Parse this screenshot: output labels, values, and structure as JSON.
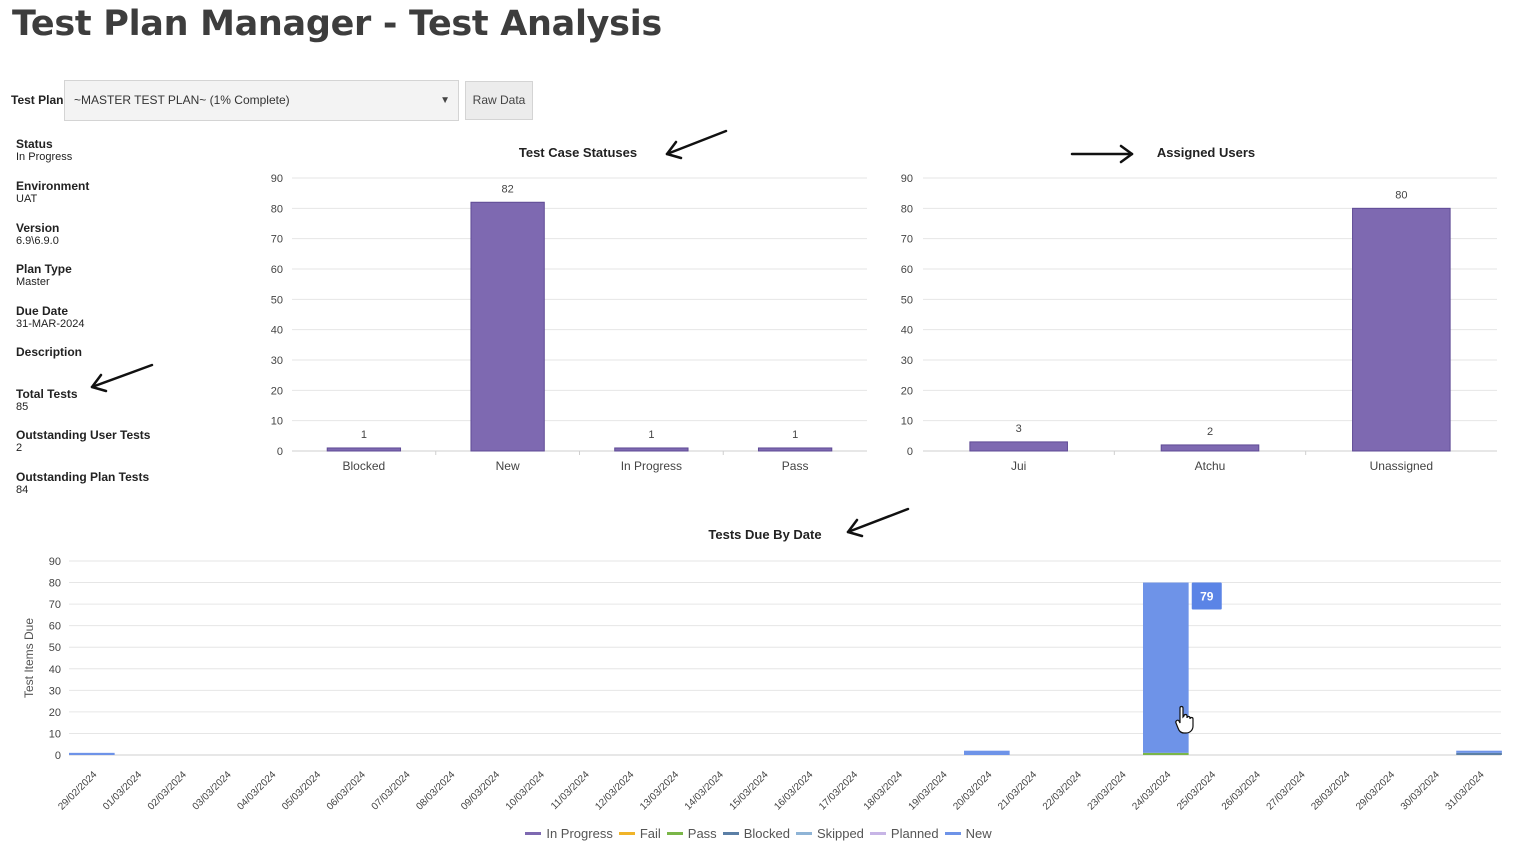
{
  "page": {
    "title": "Test Plan Manager - Test Analysis"
  },
  "controls": {
    "test_plan_label": "Test Plan",
    "test_plan_value": "~MASTER TEST PLAN~ (1% Complete)",
    "raw_data_label": "Raw Data"
  },
  "info": [
    {
      "label": "Status",
      "value": "In Progress"
    },
    {
      "label": "Environment",
      "value": "UAT"
    },
    {
      "label": "Version",
      "value": "6.9\\6.9.0"
    },
    {
      "label": "Plan Type",
      "value": "Master"
    },
    {
      "label": "Due Date",
      "value": "31-MAR-2024"
    },
    {
      "label": "Description",
      "value": ""
    },
    {
      "label": "Total Tests",
      "value": "85"
    },
    {
      "label": "Outstanding User Tests",
      "value": "2"
    },
    {
      "label": "Outstanding Plan Tests",
      "value": "84"
    }
  ],
  "colors": {
    "bar_purple": "#7e69b1",
    "new_blue": "#6e93e8",
    "blocked": "#5b7fa6",
    "tooltip": "#5b84e6",
    "grid": "#e6e6e6",
    "pass": "#7ab648"
  },
  "chart_data": [
    {
      "type": "bar",
      "title": "Test Case Statuses",
      "categories": [
        "Blocked",
        "New",
        "In Progress",
        "Pass"
      ],
      "values": [
        1,
        82,
        1,
        1
      ],
      "ylim": [
        0,
        90
      ],
      "yticks": [
        0,
        10,
        20,
        30,
        40,
        50,
        60,
        70,
        80,
        90
      ],
      "grid": true
    },
    {
      "type": "bar",
      "title": "Assigned Users",
      "categories": [
        "Jui",
        "Atchu",
        "Unassigned"
      ],
      "values": [
        3,
        2,
        80
      ],
      "ylim": [
        0,
        90
      ],
      "yticks": [
        0,
        10,
        20,
        30,
        40,
        50,
        60,
        70,
        80,
        90
      ],
      "grid": true
    },
    {
      "type": "bar",
      "title": "Tests Due By Date",
      "ylabel": "Test Items Due",
      "ylim": [
        0,
        90
      ],
      "yticks": [
        0,
        10,
        20,
        30,
        40,
        50,
        60,
        70,
        80,
        90
      ],
      "grid": true,
      "legend_position": "bottom",
      "categories": [
        "29/02/2024",
        "01/03/2024",
        "02/03/2024",
        "03/03/2024",
        "04/03/2024",
        "05/03/2024",
        "06/03/2024",
        "07/03/2024",
        "08/03/2024",
        "09/03/2024",
        "10/03/2024",
        "11/03/2024",
        "12/03/2024",
        "13/03/2024",
        "14/03/2024",
        "15/03/2024",
        "16/03/2024",
        "17/03/2024",
        "18/03/2024",
        "19/03/2024",
        "20/03/2024",
        "21/03/2024",
        "22/03/2024",
        "23/03/2024",
        "24/03/2024",
        "25/03/2024",
        "26/03/2024",
        "27/03/2024",
        "28/03/2024",
        "29/03/2024",
        "30/03/2024",
        "31/03/2024"
      ],
      "series": [
        {
          "name": "In Progress",
          "color": "#7e69b1",
          "values": [
            0,
            0,
            0,
            0,
            0,
            0,
            0,
            0,
            0,
            0,
            0,
            0,
            0,
            0,
            0,
            0,
            0,
            0,
            0,
            0,
            0,
            0,
            0,
            0,
            0,
            0,
            0,
            0,
            0,
            0,
            0,
            0
          ]
        },
        {
          "name": "Fail",
          "color": "#f0b429",
          "values": [
            0,
            0,
            0,
            0,
            0,
            0,
            0,
            0,
            0,
            0,
            0,
            0,
            0,
            0,
            0,
            0,
            0,
            0,
            0,
            0,
            0,
            0,
            0,
            0,
            0,
            0,
            0,
            0,
            0,
            0,
            0,
            0
          ]
        },
        {
          "name": "Pass",
          "color": "#7ab648",
          "values": [
            0,
            0,
            0,
            0,
            0,
            0,
            0,
            0,
            0,
            0,
            0,
            0,
            0,
            0,
            0,
            0,
            0,
            0,
            0,
            0,
            0,
            0,
            0,
            0,
            1,
            0,
            0,
            0,
            0,
            0,
            0,
            0
          ]
        },
        {
          "name": "Blocked",
          "color": "#5b7fa6",
          "values": [
            0,
            0,
            0,
            0,
            0,
            0,
            0,
            0,
            0,
            0,
            0,
            0,
            0,
            0,
            0,
            0,
            0,
            0,
            0,
            0,
            0,
            0,
            0,
            0,
            0,
            0,
            0,
            0,
            0,
            0,
            0,
            1
          ]
        },
        {
          "name": "Skipped",
          "color": "#8fb4d6",
          "values": [
            0,
            0,
            0,
            0,
            0,
            0,
            0,
            0,
            0,
            0,
            0,
            0,
            0,
            0,
            0,
            0,
            0,
            0,
            0,
            0,
            0,
            0,
            0,
            0,
            0,
            0,
            0,
            0,
            0,
            0,
            0,
            0
          ]
        },
        {
          "name": "Planned",
          "color": "#c7b5e6",
          "values": [
            0,
            0,
            0,
            0,
            0,
            0,
            0,
            0,
            0,
            0,
            0,
            0,
            0,
            0,
            0,
            0,
            0,
            0,
            0,
            0,
            0,
            0,
            0,
            0,
            0,
            0,
            0,
            0,
            0,
            0,
            0,
            0
          ]
        },
        {
          "name": "New",
          "color": "#6e93e8",
          "values": [
            1,
            0,
            0,
            0,
            0,
            0,
            0,
            0,
            0,
            0,
            0,
            0,
            0,
            0,
            0,
            0,
            0,
            0,
            0,
            0,
            2,
            0,
            0,
            0,
            79,
            0,
            0,
            0,
            0,
            0,
            0,
            1
          ]
        }
      ],
      "tooltip": {
        "category": "24/03/2024",
        "value": "79"
      }
    }
  ]
}
